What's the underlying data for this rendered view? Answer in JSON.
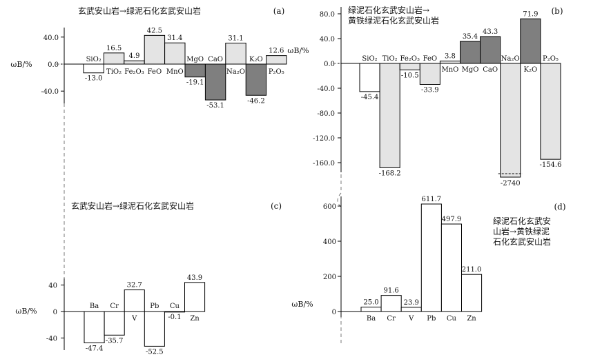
{
  "chart_data": [
    {
      "panel": "(a)",
      "type": "bar",
      "title": "玄武安山岩→绿泥石化玄武安山岩",
      "ylabel": "ωB/%",
      "ylim": [
        -60,
        60
      ],
      "yticks": [
        -40,
        0,
        40
      ],
      "ytick_labels": [
        "-40.0",
        "0.0",
        "40.0"
      ],
      "categories": [
        "SiO2",
        "TiO2",
        "Fe2O3",
        "FeO",
        "MnO",
        "MgO",
        "CaO",
        "Na2O",
        "K2O",
        "P2O5"
      ],
      "category_labels": [
        "SiO₂",
        "TiO₂",
        "Fe₂O₃",
        "FeO",
        "MnO",
        "MgO",
        "CaO",
        "Na₂O",
        "K₂O",
        "P₂O₅"
      ],
      "values": [
        -13.0,
        16.5,
        4.9,
        42.5,
        31.4,
        -19.1,
        -53.1,
        31.1,
        -46.2,
        12.6
      ],
      "value_labels": [
        "-13.0",
        "16.5",
        "4.9",
        "42.5",
        "31.4",
        "-19.1",
        "-53.1",
        "31.1",
        "-46.2",
        "12.6"
      ],
      "fills": [
        "#ffffff",
        "#e4e4e4",
        "#e4e4e4",
        "#e4e4e4",
        "#e4e4e4",
        "#7f7f7f",
        "#7f7f7f",
        "#e4e4e4",
        "#7f7f7f",
        "#e4e4e4"
      ]
    },
    {
      "panel": "(b)",
      "type": "bar",
      "title": [
        "绿泥石化玄武安山岩→",
        "黄铁绿泥石化玄武安山岩"
      ],
      "ylabel": "ωB/%",
      "ylim": [
        -185,
        85
      ],
      "yticks": [
        -160,
        -120,
        -80,
        -40,
        0,
        40,
        80
      ],
      "ytick_labels": [
        "-160.0",
        "-120.0",
        "-80.0",
        "-40.0",
        "0.0",
        "40.0",
        "80.0"
      ],
      "categories": [
        "SiO2",
        "TiO2",
        "Fe2O3",
        "FeO",
        "MnO",
        "MgO",
        "CaO",
        "Na2O",
        "K2O",
        "P2O5"
      ],
      "category_labels": [
        "SiO₂",
        "TiO₂",
        "Fe₂O₃",
        "FeO",
        "MnO",
        "MgO",
        "CaO",
        "Na₂O",
        "K₂O",
        "P₂O₅"
      ],
      "values": [
        -45.4,
        -168.2,
        -10.5,
        -33.9,
        3.8,
        35.4,
        43.3,
        -2740,
        71.9,
        -154.6
      ],
      "value_labels": [
        "-45.4",
        "-168.2",
        "-10.5",
        "-33.9",
        "3.8",
        "35.4",
        "43.3",
        "-2740",
        "71.9",
        "-154.6"
      ],
      "broken_bar": "Na2O",
      "fills": [
        "#ffffff",
        "#e4e4e4",
        "#e4e4e4",
        "#e4e4e4",
        "#e4e4e4",
        "#7f7f7f",
        "#7f7f7f",
        "#e4e4e4",
        "#7f7f7f",
        "#e4e4e4"
      ]
    },
    {
      "panel": "(c)",
      "type": "bar",
      "title": "玄武安山岩→绿泥石化玄武安山岩",
      "ylabel": "ωB/%",
      "ylim": [
        -55,
        55
      ],
      "yticks": [
        -40,
        0,
        40
      ],
      "ytick_labels": [
        "-40",
        "0",
        "40"
      ],
      "categories": [
        "Ba",
        "Cr",
        "V",
        "Pb",
        "Cu",
        "Zn"
      ],
      "category_labels": [
        "Ba",
        "Cr",
        "V",
        "Pb",
        "Cu",
        "Zn"
      ],
      "values": [
        -47.4,
        -35.7,
        32.7,
        -52.5,
        -0.1,
        43.9
      ],
      "value_labels": [
        "-47.4",
        "-35.7",
        "32.7",
        "-52.5",
        "-0.1",
        "43.9"
      ],
      "fills": [
        "#ffffff",
        "#ffffff",
        "#ffffff",
        "#ffffff",
        "#ffffff",
        "#ffffff"
      ]
    },
    {
      "panel": "(d)",
      "type": "bar",
      "title": [
        "绿泥石化玄武安",
        "山岩→黄铁绿泥",
        "石化玄武安山岩"
      ],
      "ylabel": "ωB/%",
      "ylim": [
        0,
        700
      ],
      "yticks": [
        0,
        200,
        400,
        600
      ],
      "ytick_labels": [
        "0",
        "200",
        "400",
        "600"
      ],
      "categories": [
        "Ba",
        "Cr",
        "V",
        "Pb",
        "Cu",
        "Zn"
      ],
      "category_labels": [
        "Ba",
        "Cr",
        "V",
        "Pb",
        "Cu",
        "Zn"
      ],
      "values": [
        25.0,
        91.6,
        23.9,
        611.7,
        497.9,
        211.0
      ],
      "value_labels": [
        "25.0",
        "91.6",
        "23.9",
        "611.7",
        "497.9",
        "211.0"
      ],
      "fills": [
        "#ffffff",
        "#ffffff",
        "#ffffff",
        "#ffffff",
        "#ffffff",
        "#ffffff"
      ]
    }
  ]
}
